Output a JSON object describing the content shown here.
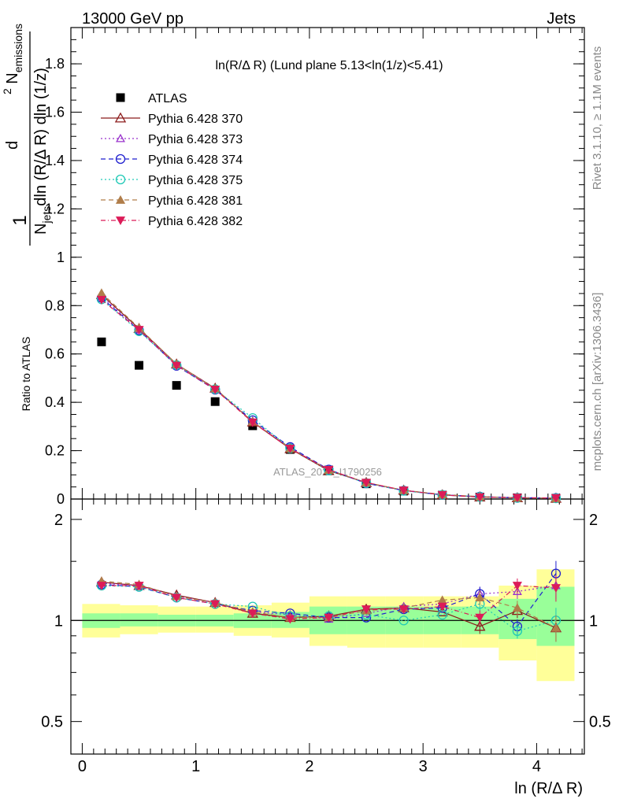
{
  "header": {
    "left": "13000 GeV pp",
    "right": "Jets"
  },
  "side_labels": {
    "rivet": "Rivet 3.1.10, ≥ 1.1M events",
    "mcplots": "mcplots.cern.ch [arXiv:1306.3436]"
  },
  "watermark": "ATLAS_2020_I1790256",
  "chart_data": [
    {
      "type": "scatter",
      "title": "ln(R/Δ R) (Lund plane 5.13<ln(1/z)<5.41)",
      "ylabel": "1 / N_jets · d² N_emissions / dln (R/Δ R) dln (1/z)",
      "xlabel": "ln (R/Δ R)",
      "xlim": [
        -0.1,
        4.42
      ],
      "ylim": [
        0,
        1.95
      ],
      "yticks": [
        "0",
        "0.2",
        "0.4",
        "0.6",
        "0.8",
        "1",
        "1.2",
        "1.4",
        "1.6",
        "1.8"
      ],
      "legend_position": "top-left",
      "x": [
        0.17,
        0.5,
        0.83,
        1.17,
        1.5,
        1.83,
        2.17,
        2.5,
        2.83,
        3.17,
        3.5,
        3.83,
        4.17
      ],
      "series": [
        {
          "name": "ATLAS",
          "color": "#000000",
          "marker": "square",
          "dash": "",
          "values": [
            0.65,
            0.553,
            0.47,
            0.403,
            0.303,
            0.205,
            0.12,
            0.063,
            0.033,
            0.016,
            0.008,
            0.005,
            0.003
          ]
        },
        {
          "name": "Pythia 6.428 370",
          "color": "#8b1a1a",
          "marker": "triangle-open",
          "dash": "",
          "values": [
            0.845,
            0.705,
            0.558,
            0.458,
            0.318,
            0.208,
            0.117,
            0.068,
            0.036,
            0.017,
            0.008,
            0.005,
            0.003
          ]
        },
        {
          "name": "Pythia 6.428 373",
          "color": "#9932cc",
          "marker": "triangle-open-small",
          "dash": "2,3",
          "values": [
            0.838,
            0.7,
            0.557,
            0.455,
            0.321,
            0.212,
            0.121,
            0.066,
            0.036,
            0.018,
            0.009,
            0.006,
            0.004
          ]
        },
        {
          "name": "Pythia 6.428 374",
          "color": "#1f1fcf",
          "marker": "circle-open",
          "dash": "6,4",
          "values": [
            0.832,
            0.698,
            0.551,
            0.452,
            0.326,
            0.215,
            0.122,
            0.065,
            0.035,
            0.017,
            0.01,
            0.005,
            0.0043
          ]
        },
        {
          "name": "Pythia 6.428 375",
          "color": "#20c9b6",
          "marker": "circle-open",
          "dash": "2,3",
          "values": [
            0.826,
            0.694,
            0.554,
            0.454,
            0.335,
            0.21,
            0.118,
            0.066,
            0.034,
            0.017,
            0.009,
            0.005,
            0.003
          ]
        },
        {
          "name": "Pythia 6.428 381",
          "color": "#b07d4a",
          "marker": "triangle-filled",
          "dash": "6,4",
          "values": [
            0.852,
            0.708,
            0.558,
            0.457,
            0.32,
            0.21,
            0.12,
            0.068,
            0.036,
            0.019,
            0.01,
            0.005,
            0.003
          ]
        },
        {
          "name": "Pythia 6.428 382",
          "color": "#dc1b58",
          "marker": "triangle-down-filled",
          "dash": "6,3,1,3",
          "values": [
            0.824,
            0.7,
            0.552,
            0.453,
            0.317,
            0.209,
            0.121,
            0.068,
            0.036,
            0.017,
            0.008,
            0.006,
            0.004
          ]
        }
      ]
    },
    {
      "type": "scatter",
      "ylabel": "Ratio to ATLAS",
      "xlabel": "ln (R/Δ R)",
      "yscale": "log",
      "xlim": [
        -0.1,
        4.42
      ],
      "ylim": [
        0.4,
        2.3
      ],
      "yticks": [
        "0.5",
        "1",
        "2"
      ],
      "xticks": [
        "0",
        "1",
        "2",
        "3",
        "4"
      ],
      "bins": [
        0,
        0.333,
        0.667,
        1.0,
        1.333,
        1.667,
        2.0,
        2.333,
        2.667,
        3.0,
        3.333,
        3.667,
        4.0,
        4.333
      ],
      "band_inner": {
        "color": "#99ff99",
        "lo": [
          0.95,
          0.96,
          0.96,
          0.96,
          0.95,
          0.95,
          0.91,
          0.91,
          0.91,
          0.91,
          0.91,
          0.88,
          0.84
        ],
        "hi": [
          1.05,
          1.05,
          1.04,
          1.04,
          1.05,
          1.06,
          1.1,
          1.1,
          1.1,
          1.1,
          1.1,
          1.16,
          1.26
        ]
      },
      "band_outer": {
        "color": "#ffff99",
        "lo": [
          0.89,
          0.91,
          0.92,
          0.92,
          0.9,
          0.89,
          0.84,
          0.83,
          0.83,
          0.83,
          0.83,
          0.76,
          0.66
        ],
        "hi": [
          1.12,
          1.11,
          1.1,
          1.1,
          1.11,
          1.13,
          1.18,
          1.18,
          1.18,
          1.18,
          1.18,
          1.27,
          1.42
        ]
      },
      "x": [
        0.17,
        0.5,
        0.83,
        1.17,
        1.5,
        1.83,
        2.17,
        2.5,
        2.83,
        3.17,
        3.5,
        3.83,
        4.17
      ],
      "series": [
        {
          "name": "Pythia 6.428 370",
          "values": [
            1.3,
            1.27,
            1.19,
            1.13,
            1.05,
            1.02,
            1.03,
            1.08,
            1.09,
            1.06,
            0.96,
            1.07,
            0.95
          ]
        },
        {
          "name": "Pythia 6.428 373",
          "values": [
            1.29,
            1.27,
            1.18,
            1.13,
            1.06,
            1.04,
            1.01,
            1.05,
            1.1,
            1.12,
            1.2,
            1.22,
            1.27
          ]
        },
        {
          "name": "Pythia 6.428 374",
          "values": [
            1.28,
            1.26,
            1.17,
            1.12,
            1.07,
            1.05,
            1.02,
            1.02,
            1.08,
            1.09,
            1.2,
            0.96,
            1.38
          ]
        },
        {
          "name": "Pythia 6.428 375",
          "values": [
            1.27,
            1.26,
            1.17,
            1.12,
            1.1,
            1.03,
            1.03,
            1.04,
            1.0,
            1.04,
            1.12,
            0.93,
            1.0
          ]
        },
        {
          "name": "Pythia 6.428 381",
          "values": [
            1.31,
            1.28,
            1.18,
            1.13,
            1.06,
            1.02,
            1.02,
            1.07,
            1.09,
            1.15,
            1.17,
            1.09,
            0.95
          ]
        },
        {
          "name": "Pythia 6.428 382",
          "values": [
            1.27,
            1.27,
            1.17,
            1.12,
            1.05,
            1.01,
            1.02,
            1.08,
            1.08,
            1.1,
            1.02,
            1.27,
            1.25
          ]
        }
      ]
    }
  ]
}
